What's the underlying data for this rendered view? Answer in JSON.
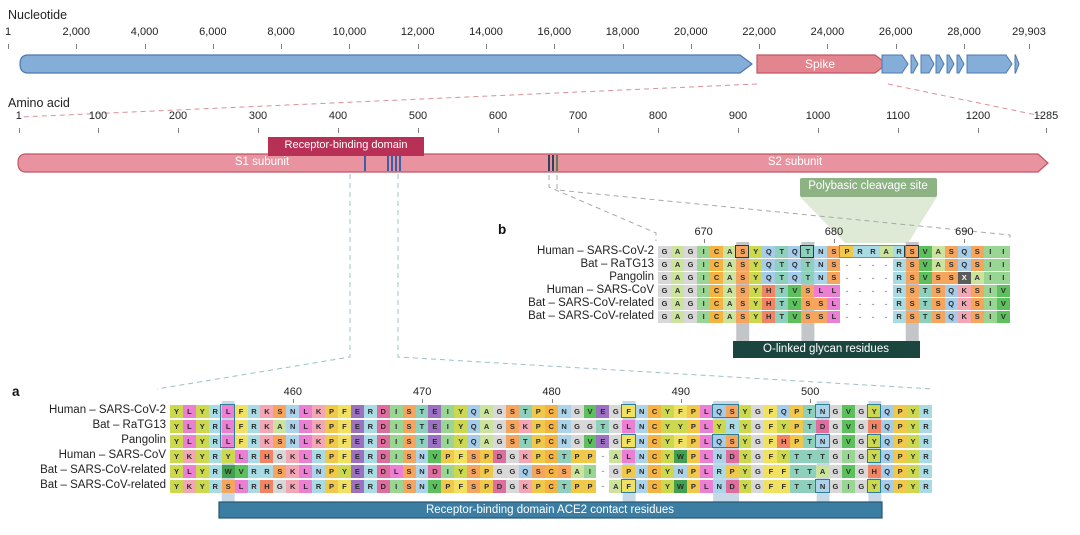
{
  "nucleotide": {
    "title": "Nucleotide",
    "ticks": [
      "1",
      "2,000",
      "4,000",
      "6,000",
      "8,000",
      "10,000",
      "12,000",
      "14,000",
      "16,000",
      "18,000",
      "20,000",
      "22,000",
      "24,000",
      "26,000",
      "28,000",
      "29,903"
    ],
    "spike_label": "Spike"
  },
  "amino": {
    "title": "Amino acid",
    "ticks": [
      "1",
      "100",
      "200",
      "300",
      "400",
      "500",
      "600",
      "700",
      "800",
      "900",
      "1000",
      "1100",
      "1200",
      "1285"
    ],
    "s1_label": "S1 subunit",
    "s2_label": "S2 subunit",
    "rbd_label": "Receptor-binding domain",
    "polybasic_label": "Polybasic cleavage site"
  },
  "panel_a": {
    "label": "a",
    "bar_label": "Receptor-binding domain ACE2 contact residues",
    "ticks": [
      {
        "t": "460",
        "col": 10
      },
      {
        "t": "470",
        "col": 20
      },
      {
        "t": "480",
        "col": 30
      },
      {
        "t": "490",
        "col": 40
      },
      {
        "t": "500",
        "col": 50
      }
    ],
    "rows": [
      {
        "name": "Human – SARS-CoV-2",
        "seq": "YLYRLFRKSNLKPFERDISTEIYQAGSTPCNGVEGFNCYFPLQSYGFQPTNGVGYQPYR"
      },
      {
        "name": "Bat – RaTG13",
        "seq": "YLYRLFRKANLKPFERDISTEIYQAGSKPCNGGTGLNCYYPLYRYGFYPTDGVGHQPYR"
      },
      {
        "name": "Pangolin",
        "seq": "YLYRLFRKSNLKPFERDISTEIYQAGSTPCNGVEGFNCYFPLQSYGFHPTNGVGYQPYR"
      },
      {
        "name": "Human – SARS-CoV",
        "seq": "YKYRYLRHGKLRPFERDISNVPFSPDGKPCTPP-ALNCYWPLNDYGFYTTTGIGYQPYR"
      },
      {
        "name": "Bat – SARS-CoV-related",
        "seq": "YLYRWVRRSKLNPYERDLSNDIYSPGGQSCSAI-GPNCYNPLRPYGFFTTAGVGHQPYR"
      },
      {
        "name": "Bat – SARS-CoV-related",
        "seq": "YKYRSLRHGKLRPFERDISNVPFSPDGKPCTPP-AFNCYWPLNDYGFFTTNGIGYQPYR"
      }
    ],
    "highlight_cols": [
      {
        "col": 5,
        "span": 1
      },
      {
        "col": 36,
        "span": 1
      },
      {
        "col": 43,
        "span": 2
      },
      {
        "col": 51,
        "span": 1
      },
      {
        "col": 55,
        "span": 1
      }
    ],
    "boxes": [
      {
        "r": 1,
        "c": 5,
        "rs": 3
      },
      {
        "r": 1,
        "c": 36
      },
      {
        "r": 3,
        "c": 36
      },
      {
        "r": 6,
        "c": 36
      },
      {
        "r": 1,
        "c": 43,
        "cs": 2
      },
      {
        "r": 3,
        "c": 43,
        "cs": 2
      },
      {
        "r": 1,
        "c": 51
      },
      {
        "r": 3,
        "c": 51
      },
      {
        "r": 6,
        "c": 51
      },
      {
        "r": 1,
        "c": 55
      },
      {
        "r": 3,
        "c": 55
      },
      {
        "r": 4,
        "c": 55
      },
      {
        "r": 6,
        "c": 55
      }
    ]
  },
  "panel_b": {
    "label": "b",
    "bar_label": "O-linked glycan residues",
    "ticks": [
      {
        "t": "670",
        "col": 4
      },
      {
        "t": "680",
        "col": 14
      },
      {
        "t": "690",
        "col": 24
      }
    ],
    "rows": [
      {
        "name": "Human – SARS-CoV-2",
        "seq": "GAGICASYQTQTNSPRRARSVASQSII"
      },
      {
        "name": "Bat – RaTG13",
        "seq": "GAGICASYQTQTNS----RSVASQSII"
      },
      {
        "name": "Pangolin",
        "seq": "GAGICASYQTQTNS----RSVSSXAII"
      },
      {
        "name": "Human – SARS-CoV",
        "seq": "GAGICASYHTVSLL----RSTSQKSIV"
      },
      {
        "name": "Bat – SARS-CoV-related",
        "seq": "GAGICASYHTVSSL----RSTSQKSIV"
      },
      {
        "name": "Bat – SARS-CoV-related",
        "seq": "GAGICASYHTVSSL----RSTSQKSIV"
      }
    ],
    "highlight_cols": [
      {
        "col": 7,
        "span": 1
      },
      {
        "col": 12,
        "span": 1
      },
      {
        "col": 20,
        "span": 1
      }
    ],
    "boxes": [
      {
        "r": 1,
        "c": 7,
        "dark": true
      },
      {
        "r": 1,
        "c": 12,
        "dark": true
      },
      {
        "r": 1,
        "c": 20,
        "dark": true
      },
      {
        "r": 1,
        "c": 15,
        "cs": 5,
        "insert": true
      }
    ]
  },
  "aa_colors": {
    "G": "#d8d8d8",
    "A": "#cbe39d",
    "V": "#5cc05c",
    "L": "#ec7fd4",
    "I": "#99d694",
    "F": "#f1e160",
    "W": "#43a04e",
    "P": "#f1c94a",
    "C": "#f5b342",
    "S": "#f5a55e",
    "T": "#8fd0bc",
    "N": "#abd4ea",
    "Q": "#a5cdea",
    "Y": "#ccd94f",
    "H": "#f08463",
    "R": "#a9dbe5",
    "K": "#f3a6b4",
    "D": "#df6e9e",
    "E": "#9c71c2",
    "M": "#7fd4c9",
    "X": "#5c5c5c"
  },
  "accents": {
    "genome_blue": "#84aed8",
    "genome_blue_stroke": "#4c78b0",
    "spike_pink": "#e2858e",
    "spike_pink_stroke": "#c25663",
    "rbd_red": "#b93057",
    "polybasic_green": "#8db284",
    "glycan_shade": "#dfead6",
    "oglycan_bar": "#1b463f",
    "ace2_bar": "#3c7da4",
    "ace2_bar_border": "#27566f",
    "band_blue": "#c7d9e8",
    "band_gray": "#c2c6c9"
  }
}
